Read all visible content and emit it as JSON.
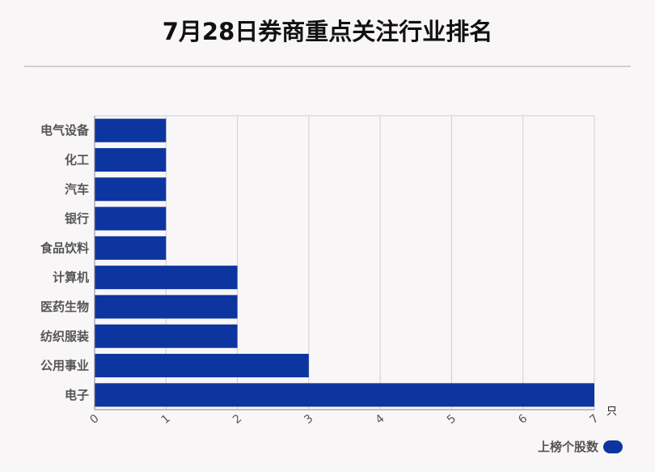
{
  "colors": {
    "bar": "#0d35a0",
    "grid": "#d0d0d0",
    "axis": "#888888",
    "background": "#f9f6f7"
  },
  "chart_data": {
    "type": "bar",
    "orientation": "horizontal",
    "title": "7月28日券商重点关注行业排名",
    "categories": [
      "电气设备",
      "化工",
      "汽车",
      "银行",
      "食品饮料",
      "计算机",
      "医药生物",
      "纺织服装",
      "公用事业",
      "电子"
    ],
    "series": [
      {
        "name": "上榜个股数",
        "values": [
          1,
          1,
          1,
          1,
          1,
          2,
          2,
          2,
          3,
          7
        ]
      }
    ],
    "x_ticks": [
      "0",
      "1",
      "2",
      "3",
      "4",
      "5",
      "6",
      "7"
    ],
    "xlim": [
      0,
      7
    ],
    "x_unit": "只",
    "grid": true,
    "legend": "bottom-right"
  }
}
